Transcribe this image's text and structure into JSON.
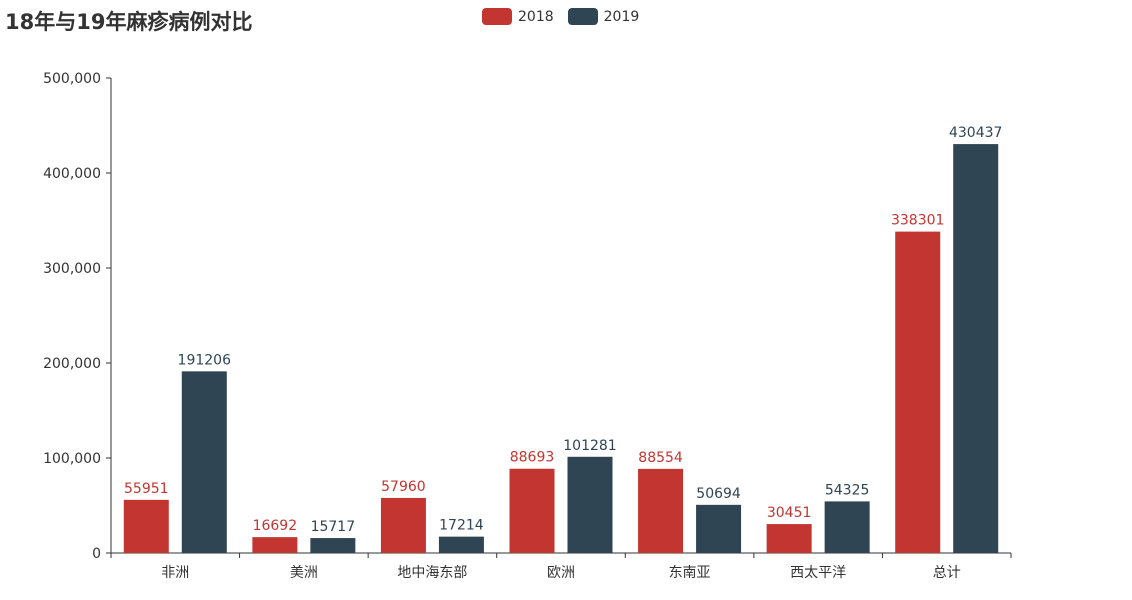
{
  "chart_data": {
    "type": "bar",
    "title": "18年与19年麻疹病例对比",
    "categories": [
      "非洲",
      "美洲",
      "地中海东部",
      "欧洲",
      "东南亚",
      "西太平洋",
      "总计"
    ],
    "series": [
      {
        "name": "2018",
        "color": "#c23531",
        "values": [
          55951,
          16692,
          57960,
          88693,
          88554,
          30451,
          338301
        ]
      },
      {
        "name": "2019",
        "color": "#2f4554",
        "values": [
          191206,
          15717,
          17214,
          101281,
          50694,
          54325,
          430437
        ]
      }
    ],
    "ylim": [
      0,
      500000
    ],
    "yticks": [
      "0",
      "100,000",
      "200,000",
      "300,000",
      "400,000",
      "500,000"
    ],
    "xlabel": "",
    "ylabel": "",
    "grid": false,
    "legend": "top-center"
  }
}
